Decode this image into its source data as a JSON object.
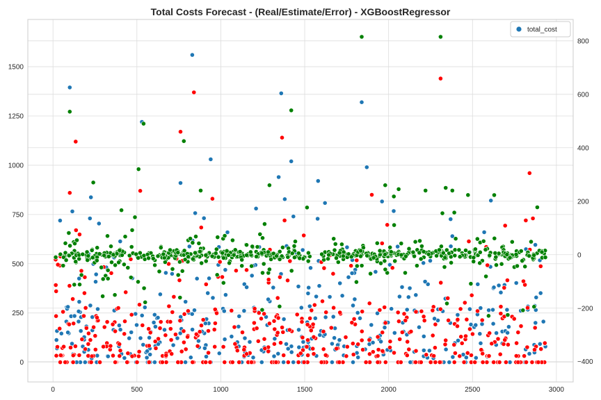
{
  "chart_data": {
    "type": "scatter",
    "title": "Total Costs Forecast - (Real/Estimate/Error) - XGBoostRegressor",
    "x_axis": {
      "range": [
        -150,
        3100
      ],
      "ticks": [
        0,
        500,
        1000,
        1500,
        2000,
        2500,
        3000
      ]
    },
    "y_left": {
      "range": [
        -100,
        1740
      ],
      "ticks": [
        0,
        250,
        500,
        750,
        1000,
        1250,
        1500
      ]
    },
    "y_right": {
      "range": [
        -476,
        880
      ],
      "ticks": [
        -400,
        -200,
        0,
        200,
        400,
        600,
        800
      ]
    },
    "grid": true,
    "legend": {
      "placement": "top-right",
      "entries": [
        {
          "label": "total_cost",
          "color": "#1f77b4"
        }
      ]
    },
    "series": [
      {
        "key": "real",
        "axis": "left",
        "color": "#1f77b4",
        "n": 380,
        "x_range": [
          15,
          2935
        ],
        "seed": 11,
        "outliers": [
          [
            100,
            1395
          ],
          [
            220,
            730
          ],
          [
            530,
            1220
          ],
          [
            760,
            910
          ],
          [
            830,
            1560
          ],
          [
            940,
            1030
          ],
          [
            1210,
            780
          ],
          [
            1345,
            940
          ],
          [
            1360,
            1365
          ],
          [
            1420,
            1020
          ],
          [
            1580,
            920
          ],
          [
            1840,
            1320
          ],
          [
            1870,
            990
          ],
          [
            2310,
            1650
          ],
          [
            2380,
            640
          ],
          [
            2570,
            660
          ]
        ]
      },
      {
        "key": "estimate",
        "axis": "left",
        "color": "#ff0000",
        "n": 460,
        "x_range": [
          15,
          2935
        ],
        "seed": 23,
        "outliers": [
          [
            100,
            860
          ],
          [
            135,
            1120
          ],
          [
            520,
            870
          ],
          [
            760,
            1170
          ],
          [
            840,
            1370
          ],
          [
            950,
            830
          ],
          [
            1365,
            1140
          ],
          [
            1380,
            720
          ],
          [
            1900,
            850
          ],
          [
            2310,
            1440
          ],
          [
            2530,
            260
          ],
          [
            2840,
            960
          ],
          [
            2860,
            730
          ]
        ]
      },
      {
        "key": "error",
        "axis": "right",
        "color": "#008000",
        "n": 600,
        "x_range": [
          15,
          2935
        ],
        "seed": 37,
        "outliers": [
          [
            100,
            535
          ],
          [
            240,
            270
          ],
          [
            510,
            320
          ],
          [
            540,
            490
          ],
          [
            780,
            425
          ],
          [
            1420,
            540
          ],
          [
            1840,
            815
          ],
          [
            2310,
            815
          ],
          [
            2340,
            250
          ],
          [
            2380,
            240
          ],
          [
            880,
            240
          ],
          [
            1290,
            260
          ],
          [
            1980,
            260
          ],
          [
            2060,
            245
          ],
          [
            2220,
            240
          ]
        ]
      }
    ]
  }
}
